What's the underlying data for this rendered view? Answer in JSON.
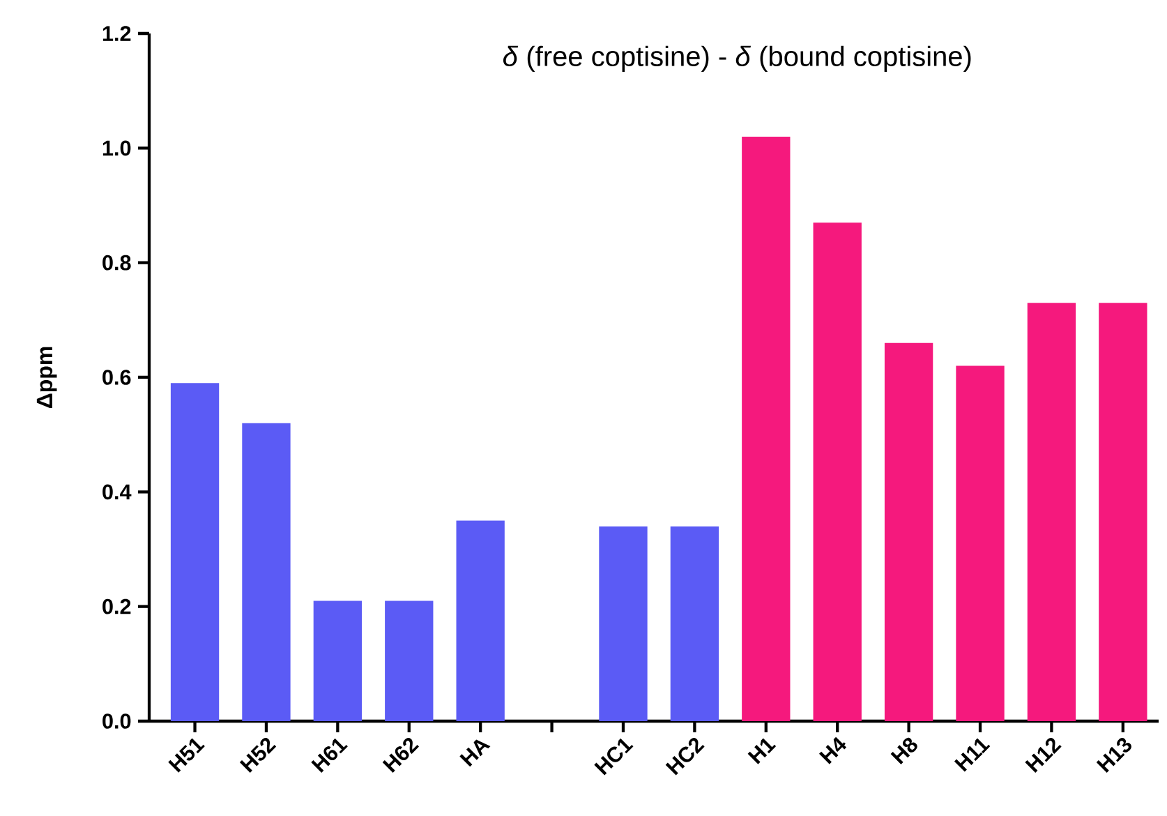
{
  "chart_data": {
    "type": "bar",
    "title": "*δ* (free coptisine) - *δ* (bound coptisine)",
    "ylabel": "Δppm",
    "categories": [
      "H51",
      "H52",
      "H61",
      "H62",
      "HA",
      null,
      "HC1",
      "HC2",
      "H1",
      "H4",
      "H8",
      "H11",
      "H12",
      "H13"
    ],
    "values": [
      0.59,
      0.52,
      0.21,
      0.21,
      0.35,
      null,
      0.34,
      0.34,
      1.02,
      0.87,
      0.66,
      0.62,
      0.73,
      0.73
    ],
    "colors": [
      "#5b5bf5",
      "#5b5bf5",
      "#5b5bf5",
      "#5b5bf5",
      "#5b5bf5",
      "#5b5bf5",
      "#5b5bf5",
      "#5b5bf5",
      "#f5197d",
      "#f5197d",
      "#f5197d",
      "#f5197d",
      "#f5197d",
      "#f5197d"
    ],
    "ylim": [
      0,
      1.2
    ],
    "yticks": [
      {
        "value": 0,
        "label": "0.0"
      },
      {
        "value": 0.2,
        "label": "0.2"
      },
      {
        "value": 0.4,
        "label": "0.4"
      },
      {
        "value": 0.6,
        "label": "0.6"
      },
      {
        "value": 0.8,
        "label": "0.8"
      },
      {
        "value": 1.0,
        "label": "1.0"
      },
      {
        "value": 1.2,
        "label": "1.2"
      }
    ],
    "grid": false
  }
}
